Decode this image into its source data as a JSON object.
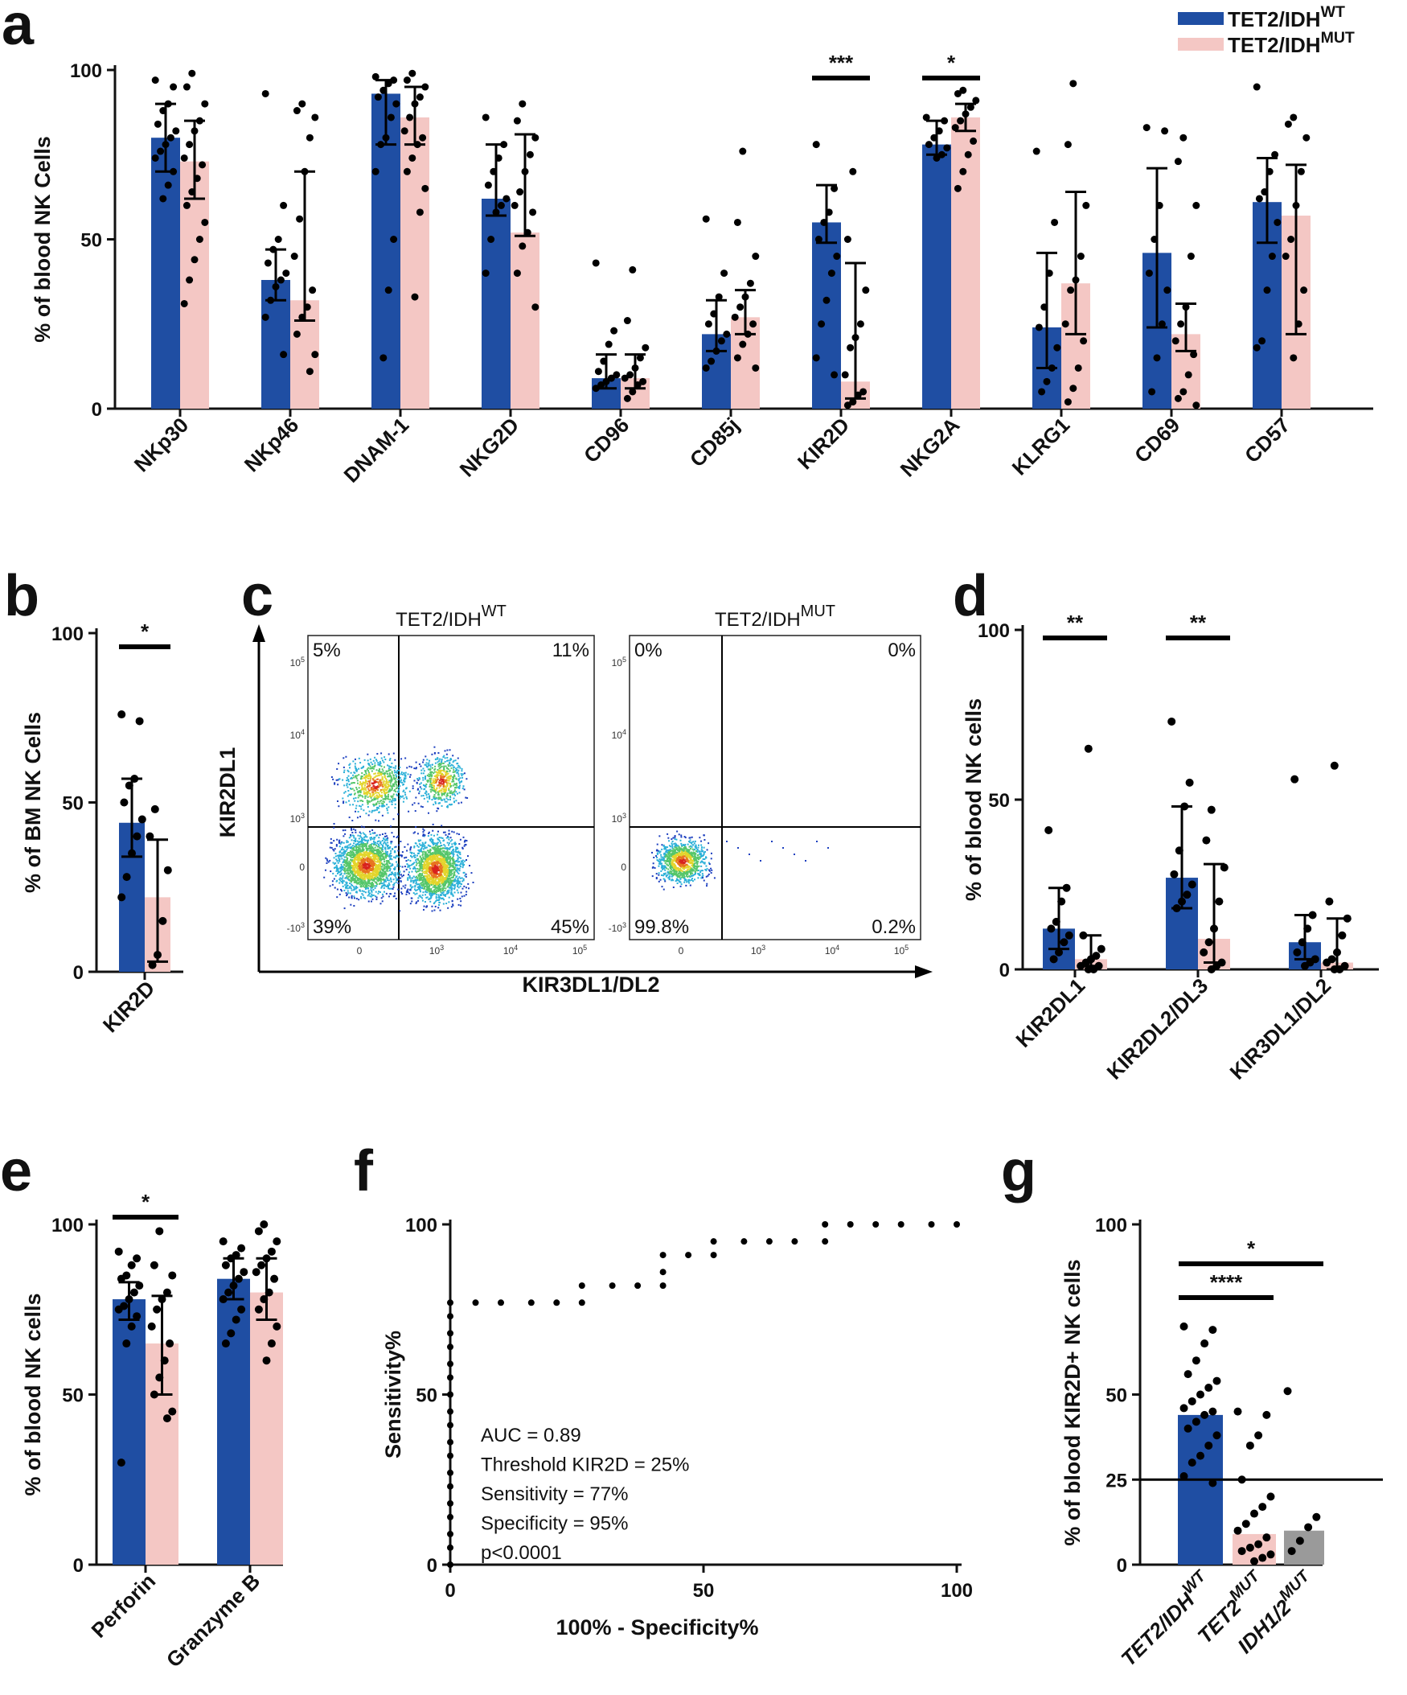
{
  "panel_labels": {
    "a": "a",
    "b": "b",
    "c": "c",
    "d": "d",
    "e": "e",
    "f": "f",
    "g": "g"
  },
  "colors": {
    "wt": "#1f4ea3",
    "mut": "#f4c7c4",
    "idh12": "#9a9a9a",
    "axis": "#111111",
    "dot": "#000000"
  },
  "legend": {
    "wt": {
      "base": "TET2/IDH",
      "sup": "WT"
    },
    "mut": {
      "base": "TET2/IDH",
      "sup": "MUT"
    }
  },
  "chart_data": [
    {
      "id": "a",
      "type": "bar",
      "ylabel": "% of blood NK Cells",
      "ylim": [
        0,
        100
      ],
      "yticks": [
        "0",
        "50",
        "100"
      ],
      "categories": [
        "NKp30",
        "NKp46",
        "DNAM-1",
        "NKG2D",
        "CD96",
        "CD85j",
        "KIR2D",
        "NKG2A",
        "KLRG1",
        "CD69",
        "CD57"
      ],
      "series": [
        {
          "name": "TET2/IDH WT",
          "values": [
            80,
            38,
            93,
            62,
            9,
            22,
            55,
            78,
            24,
            46,
            61
          ],
          "err": [
            [
              70,
              90
            ],
            [
              32,
              47
            ],
            [
              78,
              97
            ],
            [
              57,
              78
            ],
            [
              6,
              16
            ],
            [
              17,
              32
            ],
            [
              49,
              66
            ],
            [
              75,
              85
            ],
            [
              12,
              46
            ],
            [
              24,
              71
            ],
            [
              49,
              74
            ]
          ]
        },
        {
          "name": "TET2/IDH MUT",
          "values": [
            73,
            32,
            86,
            52,
            9,
            27,
            8,
            86,
            37,
            22,
            57
          ],
          "err": [
            [
              62,
              85
            ],
            [
              26,
              70
            ],
            [
              78,
              95
            ],
            [
              51,
              81
            ],
            [
              6,
              16
            ],
            [
              22,
              35
            ],
            [
              3,
              43
            ],
            [
              82,
              90
            ],
            [
              22,
              64
            ],
            [
              17,
              31
            ],
            [
              22,
              72
            ]
          ]
        }
      ],
      "significance": [
        {
          "category": "KIR2D",
          "label": "***"
        },
        {
          "category": "NKG2A",
          "label": "*"
        }
      ],
      "points": [
        [
          [
            97,
            95,
            90,
            88,
            84,
            82,
            80,
            78,
            76,
            74,
            70,
            66,
            62
          ],
          [
            99,
            95,
            90,
            85,
            82,
            78,
            74,
            72,
            68,
            64,
            60,
            55,
            50,
            44,
            38,
            31
          ]
        ],
        [
          [
            93,
            60,
            50,
            47,
            43,
            40,
            38,
            36,
            32,
            27,
            16
          ],
          [
            90,
            88,
            86,
            80,
            70,
            56,
            45,
            35,
            30,
            27,
            22,
            16,
            11
          ]
        ],
        [
          [
            98,
            97,
            96,
            94,
            92,
            90,
            86,
            80,
            78,
            70,
            50,
            35,
            15
          ],
          [
            99,
            97,
            95,
            92,
            90,
            86,
            82,
            80,
            78,
            74,
            70,
            65,
            58,
            33
          ]
        ],
        [
          [
            86,
            78,
            74,
            70,
            66,
            62,
            60,
            58,
            50,
            40
          ],
          [
            90,
            85,
            80,
            75,
            70,
            64,
            60,
            58,
            52,
            48,
            40,
            30
          ]
        ],
        [
          [
            43,
            23,
            19,
            14,
            11,
            10,
            9,
            8,
            7,
            6
          ],
          [
            41,
            26,
            18,
            15,
            12,
            10,
            9,
            8,
            7,
            5,
            3
          ]
        ],
        [
          [
            56,
            40,
            33,
            28,
            25,
            22,
            20,
            17,
            14,
            12
          ],
          [
            76,
            55,
            45,
            37,
            33,
            30,
            27,
            25,
            22,
            19,
            15,
            12
          ]
        ],
        [
          [
            78,
            65,
            58,
            55,
            50,
            45,
            40,
            32,
            25,
            15,
            10
          ],
          [
            70,
            50,
            35,
            25,
            21,
            18,
            10,
            5,
            4,
            2,
            1
          ]
        ],
        [
          [
            86,
            85,
            82,
            80,
            78,
            77,
            75,
            74
          ],
          [
            94,
            93,
            91,
            89,
            87,
            85,
            83,
            79,
            75,
            70,
            65
          ]
        ],
        [
          [
            76,
            55,
            40,
            30,
            24,
            18,
            12,
            8,
            5
          ],
          [
            96,
            78,
            60,
            45,
            38,
            35,
            25,
            20,
            12,
            6,
            2
          ]
        ],
        [
          [
            83,
            82,
            60,
            50,
            40,
            35,
            25,
            15,
            5
          ],
          [
            80,
            73,
            60,
            45,
            30,
            25,
            20,
            16,
            10,
            5,
            3,
            1
          ]
        ],
        [
          [
            95,
            75,
            70,
            64,
            62,
            55,
            45,
            35,
            20,
            18
          ],
          [
            86,
            84,
            80,
            70,
            60,
            50,
            45,
            35,
            25,
            15
          ]
        ]
      ]
    },
    {
      "id": "b",
      "type": "bar",
      "ylabel": "% of BM NK Cells",
      "ylim": [
        0,
        100
      ],
      "yticks": [
        "0",
        "50",
        "100"
      ],
      "categories": [
        "KIR2D"
      ],
      "series": [
        {
          "name": "TET2/IDH WT",
          "values": [
            44
          ],
          "err": [
            [
              34,
              57
            ]
          ]
        },
        {
          "name": "TET2/IDH MUT",
          "values": [
            22
          ],
          "err": [
            [
              3,
              39
            ]
          ]
        }
      ],
      "significance": [
        {
          "category": "KIR2D",
          "label": "*"
        }
      ],
      "points": [
        [
          [
            76,
            74,
            57,
            55,
            50,
            45,
            40,
            35,
            28,
            22
          ],
          [
            48,
            40,
            30,
            15,
            5,
            2
          ]
        ]
      ]
    },
    {
      "id": "c",
      "type": "scatter",
      "xlabel": "KIR3DL1/DL2",
      "ylabel": "KIR2DL1",
      "plots": [
        {
          "title_base": "TET2/IDH",
          "title_sup": "WT",
          "quadrants": [
            "5%",
            "11%",
            "39%",
            "45%"
          ],
          "yticks": [
            "10^5",
            "10^4",
            "10^3",
            "0",
            "-10^3"
          ],
          "xticks": [
            "0",
            "10^3",
            "10^4",
            "10^5"
          ]
        },
        {
          "title_base": "TET2/IDH",
          "title_sup": "MUT",
          "quadrants": [
            "0%",
            "0%",
            "99.8%",
            "0.2%"
          ],
          "yticks": [
            "10^5",
            "10^4",
            "10^3",
            "0",
            "-10^3"
          ],
          "xticks": [
            "0",
            "10^3",
            "10^4",
            "10^5"
          ]
        }
      ]
    },
    {
      "id": "d",
      "type": "bar",
      "ylabel": "% of blood NK cells",
      "ylim": [
        0,
        100
      ],
      "yticks": [
        "0",
        "50",
        "100"
      ],
      "categories": [
        "KIR2DL1",
        "KIR2DL2/DL3",
        "KIR3DL1/DL2"
      ],
      "series": [
        {
          "name": "TET2/IDH WT",
          "values": [
            12,
            27,
            8
          ],
          "err": [
            [
              6,
              24
            ],
            [
              18,
              48
            ],
            [
              3,
              16
            ]
          ]
        },
        {
          "name": "TET2/IDH MUT",
          "values": [
            3,
            9,
            2
          ],
          "err": [
            [
              1,
              10
            ],
            [
              2,
              31
            ],
            [
              0,
              15
            ]
          ]
        }
      ],
      "significance": [
        {
          "category": "KIR2DL1",
          "label": "**"
        },
        {
          "category": "KIR2DL2/DL3",
          "label": "**"
        }
      ],
      "points": [
        [
          [
            41,
            24,
            20,
            14,
            12,
            10,
            8,
            5,
            3
          ],
          [
            65,
            10,
            6,
            4,
            3,
            2,
            1,
            1,
            0,
            0
          ]
        ],
        [
          [
            73,
            55,
            48,
            35,
            28,
            25,
            22,
            20,
            18
          ],
          [
            47,
            38,
            30,
            20,
            12,
            8,
            5,
            2,
            1,
            0
          ]
        ],
        [
          [
            56,
            16,
            12,
            8,
            5,
            3,
            2,
            1
          ],
          [
            60,
            20,
            15,
            10,
            5,
            3,
            2,
            1,
            0,
            0
          ]
        ]
      ]
    },
    {
      "id": "e",
      "type": "bar",
      "ylabel": "% of blood NK cells",
      "ylim": [
        0,
        100
      ],
      "yticks": [
        "0",
        "50",
        "100"
      ],
      "categories": [
        "Perforin",
        "Granzyme B"
      ],
      "series": [
        {
          "name": "TET2/IDH WT",
          "values": [
            78,
            84
          ],
          "err": [
            [
              72,
              83
            ],
            [
              78,
              90
            ]
          ]
        },
        {
          "name": "TET2/IDH MUT",
          "values": [
            65,
            80
          ],
          "err": [
            [
              50,
              79
            ],
            [
              72,
              90
            ]
          ]
        }
      ],
      "significance": [
        {
          "category": "Perforin",
          "label": "*"
        }
      ],
      "points": [
        [
          [
            92,
            90,
            88,
            85,
            84,
            82,
            80,
            78,
            76,
            75,
            73,
            70,
            65,
            30
          ],
          [
            98,
            88,
            85,
            80,
            78,
            75,
            70,
            65,
            60,
            55,
            50,
            45,
            43
          ]
        ],
        [
          [
            95,
            93,
            91,
            90,
            88,
            86,
            84,
            82,
            80,
            78,
            75,
            72,
            68,
            65
          ],
          [
            100,
            98,
            95,
            92,
            90,
            88,
            86,
            84,
            80,
            78,
            75,
            70,
            65,
            60
          ]
        ]
      ]
    },
    {
      "id": "f",
      "type": "scatter",
      "xlabel": "100% - Specificity%",
      "ylabel": "Sensitivity%",
      "xlim": [
        0,
        100
      ],
      "ylim": [
        0,
        100
      ],
      "xticks": [
        "0",
        "50",
        "100"
      ],
      "yticks": [
        "0",
        "50",
        "100"
      ],
      "x": [
        0,
        0,
        0,
        0,
        0,
        0,
        0,
        0,
        0,
        0,
        0,
        0,
        0,
        0,
        0,
        0,
        0,
        0,
        5,
        10,
        16,
        21,
        26,
        26,
        32,
        37,
        42,
        42,
        42,
        47,
        52,
        52,
        58,
        63,
        68,
        74,
        74,
        79,
        84,
        89,
        95,
        100
      ],
      "y": [
        0,
        5,
        9,
        14,
        18,
        23,
        27,
        32,
        36,
        41,
        45,
        50,
        55,
        59,
        64,
        68,
        73,
        77,
        77,
        77,
        77,
        77,
        77,
        82,
        82,
        82,
        82,
        86,
        91,
        91,
        91,
        95,
        95,
        95,
        95,
        95,
        100,
        100,
        100,
        100,
        100,
        100
      ],
      "annotations": [
        "AUC = 0.89",
        "Threshold KIR2D = 25%",
        "Sensitivity = 77%",
        "Specificity = 95%",
        "p<0.0001"
      ]
    },
    {
      "id": "g",
      "type": "bar",
      "ylabel": "% of blood KIR2D+ NK cells",
      "ylim": [
        0,
        100
      ],
      "yticks": [
        "0",
        "25",
        "50",
        "100"
      ],
      "threshold": 25,
      "categories": [
        {
          "base": "TET2/IDH",
          "sup": "WT"
        },
        {
          "base": "TET2",
          "sup": "MUT"
        },
        {
          "base": "IDH1/2",
          "sup": "MUT"
        }
      ],
      "values": [
        44,
        9,
        10
      ],
      "significance": [
        {
          "from": 0,
          "to": 1,
          "label": "****"
        },
        {
          "from": 0,
          "to": 2,
          "label": "*"
        }
      ],
      "points": [
        [
          70,
          69,
          65,
          60,
          56,
          54,
          52,
          50,
          48,
          46,
          45,
          44,
          42,
          40,
          38,
          35,
          32,
          30,
          26,
          24
        ],
        [
          45,
          44,
          38,
          35,
          25,
          20,
          17,
          15,
          12,
          10,
          8,
          6,
          5,
          4,
          3,
          2,
          1
        ],
        [
          51,
          14,
          11,
          7,
          4
        ]
      ]
    }
  ]
}
